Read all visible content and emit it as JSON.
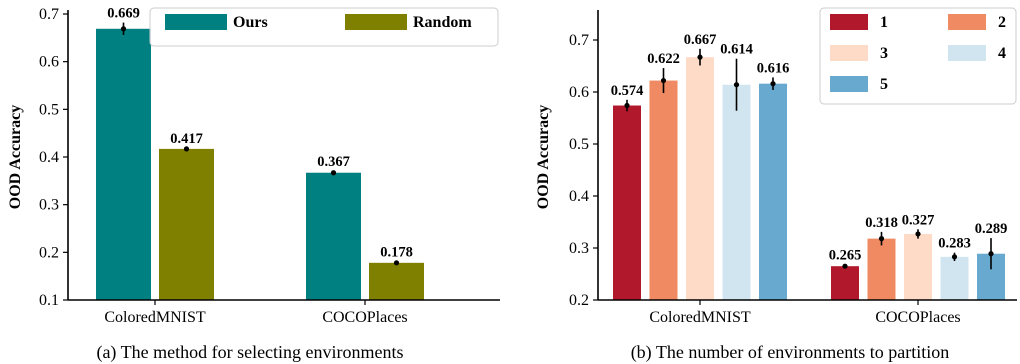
{
  "chart_data": [
    {
      "type": "bar",
      "caption": "(a)  The method for selecting environments",
      "ylabel": "OOD Accuracy",
      "ylim": [
        0.1,
        0.7
      ],
      "yticks": [
        "0.1",
        "0.2",
        "0.3",
        "0.4",
        "0.5",
        "0.6",
        "0.7"
      ],
      "categories": [
        "ColoredMNIST",
        "COCOPlaces"
      ],
      "legend_position": "top",
      "series": [
        {
          "name": "Ours",
          "color": "#008080",
          "values": [
            0.669,
            0.367
          ],
          "labels": [
            "0.669",
            "0.367"
          ],
          "err": [
            0.013,
            0.004
          ]
        },
        {
          "name": "Random",
          "color": "#808000",
          "values": [
            0.417,
            0.178
          ],
          "labels": [
            "0.417",
            "0.178"
          ],
          "err": [
            0.002,
            0.003
          ]
        }
      ]
    },
    {
      "type": "bar",
      "caption": "(b)  The number of environments to partition",
      "ylabel": "OOD Accuracy",
      "ylim": [
        0.2,
        0.75
      ],
      "yticks": [
        "0.2",
        "0.3",
        "0.4",
        "0.5",
        "0.6",
        "0.7"
      ],
      "categories": [
        "ColoredMNIST",
        "COCOPlaces"
      ],
      "legend_position": "top-right",
      "series": [
        {
          "name": "1",
          "color": "#b2182b",
          "values": [
            0.574,
            0.265
          ],
          "labels": [
            "0.574",
            "0.265"
          ],
          "err": [
            0.011,
            0.003
          ]
        },
        {
          "name": "2",
          "color": "#ef8a62",
          "values": [
            0.622,
            0.318
          ],
          "labels": [
            "0.622",
            "0.318"
          ],
          "err": [
            0.024,
            0.013
          ]
        },
        {
          "name": "3",
          "color": "#fddbc7",
          "values": [
            0.667,
            0.327
          ],
          "labels": [
            "0.667",
            "0.327"
          ],
          "err": [
            0.016,
            0.009
          ]
        },
        {
          "name": "4",
          "color": "#d1e5f0",
          "values": [
            0.614,
            0.283
          ],
          "labels": [
            "0.614",
            "0.283"
          ],
          "err": [
            0.05,
            0.008
          ]
        },
        {
          "name": "5",
          "color": "#67a9cf",
          "values": [
            0.616,
            0.289
          ],
          "labels": [
            "0.616",
            "0.289"
          ],
          "err": [
            0.012,
            0.03
          ]
        }
      ]
    }
  ]
}
